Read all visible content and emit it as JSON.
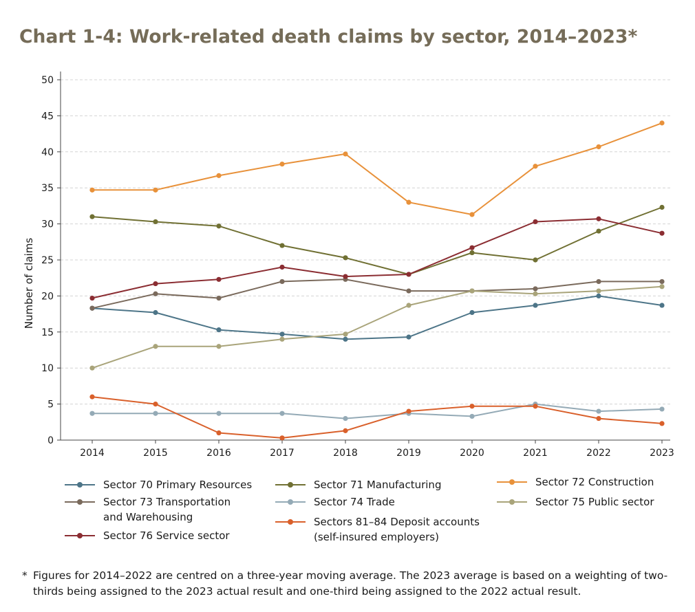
{
  "chart_data": {
    "type": "line",
    "title": "Chart 1-4: Work-related death claims by sector, 2014–2023*",
    "xlabel": "",
    "ylabel": "Number of claims",
    "ylim": [
      0,
      50
    ],
    "yticks": [
      "0",
      "5",
      "10",
      "15",
      "20",
      "25",
      "30",
      "35",
      "40",
      "45",
      "50"
    ],
    "categories": [
      "2014",
      "2015",
      "2016",
      "2017",
      "2018",
      "2019",
      "2020",
      "2021",
      "2022",
      "2023"
    ],
    "grid": "horizontal dashed",
    "legend_position": "bottom",
    "series": [
      {
        "name": "Sector 70 Primary Resources",
        "color": "#4d7588",
        "values": [
          18.3,
          17.7,
          15.3,
          14.7,
          14.0,
          14.3,
          17.7,
          18.7,
          20.0,
          18.7
        ]
      },
      {
        "name": "Sector 71 Manufacturing",
        "color": "#707033",
        "values": [
          31.0,
          30.3,
          29.7,
          27.0,
          25.3,
          23.0,
          26.0,
          25.0,
          29.0,
          32.3
        ]
      },
      {
        "name": "Sector 72 Construction",
        "color": "#e8913a",
        "values": [
          34.7,
          34.7,
          36.7,
          38.3,
          39.7,
          33.0,
          31.3,
          38.0,
          40.7,
          44.0
        ]
      },
      {
        "name": "Sector 73 Transportation and Warehousing",
        "color": "#7a6a5c",
        "values": [
          18.3,
          20.3,
          19.7,
          22.0,
          22.3,
          20.7,
          20.7,
          21.0,
          22.0,
          22.0
        ]
      },
      {
        "name": "Sector 74 Trade",
        "color": "#94aab6",
        "values": [
          3.7,
          3.7,
          3.7,
          3.7,
          3.0,
          3.7,
          3.3,
          5.0,
          4.0,
          4.3
        ]
      },
      {
        "name": "Sector 75 Public sector",
        "color": "#a9a47a",
        "values": [
          10.0,
          13.0,
          13.0,
          14.0,
          14.7,
          18.7,
          20.7,
          20.3,
          20.7,
          21.3
        ]
      },
      {
        "name": "Sector 76 Service sector",
        "color": "#8b2d32",
        "values": [
          19.7,
          21.7,
          22.3,
          24.0,
          22.7,
          23.0,
          26.7,
          30.3,
          30.7,
          28.7
        ]
      },
      {
        "name": "Sectors 81–84 Deposit accounts (self-insured employers)",
        "color": "#d9602b",
        "values": [
          6.0,
          5.0,
          1.0,
          0.3,
          1.3,
          4.0,
          4.7,
          4.7,
          3.0,
          2.3
        ]
      }
    ],
    "legend": [
      {
        "line1": "Sector 70 Primary Resources",
        "line2": "",
        "color": "#4d7588"
      },
      {
        "line1": "Sector 71 Manufacturing",
        "line2": "",
        "color": "#707033"
      },
      {
        "line1": "Sector 72 Construction",
        "line2": "",
        "color": "#e8913a"
      },
      {
        "line1": "Sector 73 Transportation",
        "line2": "and Warehousing",
        "color": "#7a6a5c"
      },
      {
        "line1": "Sector 74 Trade",
        "line2": "",
        "color": "#94aab6"
      },
      {
        "line1": "Sector 75 Public sector",
        "line2": "",
        "color": "#a9a47a"
      },
      {
        "line1": "Sector 76 Service sector",
        "line2": "",
        "color": "#8b2d32"
      },
      {
        "line1": "Sectors 81–84 Deposit accounts",
        "line2": "(self-insured employers)",
        "color": "#d9602b"
      }
    ]
  },
  "footnote": {
    "marker": "*",
    "text": "Figures for 2014–2022 are centred on a three-year moving average. The 2023 average is based on a weighting of two-thirds being assigned to the 2023 actual result and one-third being assigned to the 2022 actual result."
  }
}
